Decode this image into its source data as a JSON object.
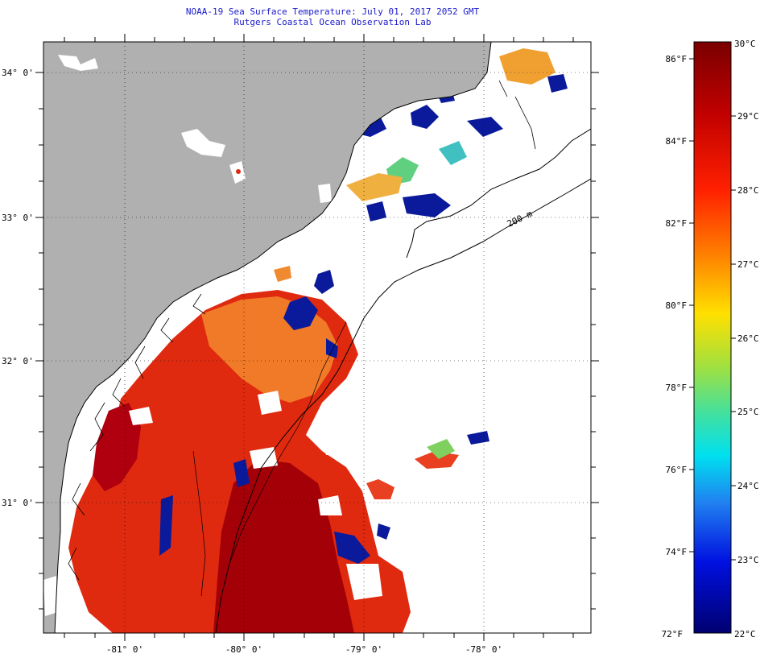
{
  "title": {
    "line1": "NOAA-19 Sea Surface Temperature:  July 01, 2017 2052 GMT",
    "line2": "Rutgers Coastal Ocean Observation Lab"
  },
  "map": {
    "lat_labels": [
      "34° 0'",
      "33° 0'",
      "32° 0'",
      "31° 0'"
    ],
    "lon_labels": [
      "-81° 0'",
      "-80° 0'",
      "-79° 0'",
      "-78° 0'"
    ],
    "contour_label": "200 m",
    "colors": {
      "land": "#b0b0b0",
      "cloud": "#ffffff",
      "coast": "#000000",
      "hot": "#b00000",
      "warm": "#e83010",
      "orange": "#f07020",
      "cool": "#0a1a9a"
    }
  },
  "colorbar": {
    "f_labels": [
      "86°F",
      "84°F",
      "82°F",
      "80°F",
      "78°F",
      "76°F",
      "74°F",
      "72°F"
    ],
    "c_labels": [
      "30°C",
      "29°C",
      "28°C",
      "27°C",
      "26°C",
      "25°C",
      "24°C",
      "23°C",
      "22°C"
    ]
  }
}
